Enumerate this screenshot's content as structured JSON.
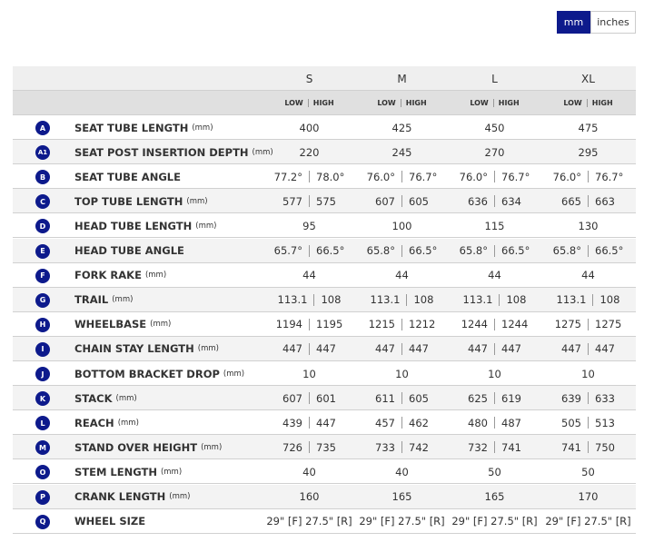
{
  "units": {
    "options": [
      "mm",
      "inches"
    ],
    "selected": 0
  },
  "sizes": [
    "S",
    "M",
    "L",
    "XL"
  ],
  "subheader": {
    "low": "LOW",
    "high": "HIGH"
  },
  "rows": [
    {
      "badge": "A",
      "label": "SEAT TUBE LENGTH",
      "unit": "(mm)",
      "cells": [
        "400",
        "425",
        "450",
        "475"
      ]
    },
    {
      "badge": "A1",
      "label": "SEAT POST INSERTION DEPTH",
      "unit": "(mm)",
      "cells": [
        "220",
        "245",
        "270",
        "295"
      ]
    },
    {
      "badge": "B",
      "label": "SEAT TUBE ANGLE",
      "cells": [
        [
          "77.2°",
          "78.0°"
        ],
        [
          "76.0°",
          "76.7°"
        ],
        [
          "76.0°",
          "76.7°"
        ],
        [
          "76.0°",
          "76.7°"
        ]
      ]
    },
    {
      "badge": "C",
      "label": "TOP TUBE LENGTH",
      "unit": "(mm)",
      "cells": [
        [
          "577",
          "575"
        ],
        [
          "607",
          "605"
        ],
        [
          "636",
          "634"
        ],
        [
          "665",
          "663"
        ]
      ]
    },
    {
      "badge": "D",
      "label": "HEAD TUBE LENGTH",
      "unit": "(mm)",
      "cells": [
        "95",
        "100",
        "115",
        "130"
      ]
    },
    {
      "badge": "E",
      "label": "HEAD TUBE ANGLE",
      "cells": [
        [
          "65.7°",
          "66.5°"
        ],
        [
          "65.8°",
          "66.5°"
        ],
        [
          "65.8°",
          "66.5°"
        ],
        [
          "65.8°",
          "66.5°"
        ]
      ]
    },
    {
      "badge": "F",
      "label": "FORK RAKE",
      "unit": "(mm)",
      "cells": [
        "44",
        "44",
        "44",
        "44"
      ]
    },
    {
      "badge": "G",
      "label": "TRAIL",
      "unit": "(mm)",
      "cells": [
        [
          "113.1",
          "108"
        ],
        [
          "113.1",
          "108"
        ],
        [
          "113.1",
          "108"
        ],
        [
          "113.1",
          "108"
        ]
      ]
    },
    {
      "badge": "H",
      "label": "WHEELBASE",
      "unit": "(mm)",
      "cells": [
        [
          "1194",
          "1195"
        ],
        [
          "1215",
          "1212"
        ],
        [
          "1244",
          "1244"
        ],
        [
          "1275",
          "1275"
        ]
      ]
    },
    {
      "badge": "I",
      "label": "CHAIN STAY LENGTH",
      "unit": "(mm)",
      "cells": [
        [
          "447",
          "447"
        ],
        [
          "447",
          "447"
        ],
        [
          "447",
          "447"
        ],
        [
          "447",
          "447"
        ]
      ]
    },
    {
      "badge": "J",
      "label": "BOTTOM BRACKET DROP",
      "unit": "(mm)",
      "cells": [
        "10",
        "10",
        "10",
        "10"
      ]
    },
    {
      "badge": "K",
      "label": "STACK",
      "unit": "(mm)",
      "cells": [
        [
          "607",
          "601"
        ],
        [
          "611",
          "605"
        ],
        [
          "625",
          "619"
        ],
        [
          "639",
          "633"
        ]
      ]
    },
    {
      "badge": "L",
      "label": "REACH",
      "unit": "(mm)",
      "cells": [
        [
          "439",
          "447"
        ],
        [
          "457",
          "462"
        ],
        [
          "480",
          "487"
        ],
        [
          "505",
          "513"
        ]
      ]
    },
    {
      "badge": "M",
      "label": "STAND OVER HEIGHT",
      "unit": "(mm)",
      "cells": [
        [
          "726",
          "735"
        ],
        [
          "733",
          "742"
        ],
        [
          "732",
          "741"
        ],
        [
          "741",
          "750"
        ]
      ]
    },
    {
      "badge": "O",
      "label": "STEM LENGTH",
      "unit": "(mm)",
      "cells": [
        "40",
        "40",
        "50",
        "50"
      ]
    },
    {
      "badge": "P",
      "label": "CRANK LENGTH",
      "unit": "(mm)",
      "cells": [
        "160",
        "165",
        "165",
        "170"
      ]
    },
    {
      "badge": "Q",
      "label": "WHEEL SIZE",
      "cells": [
        "29\" [F] 27.5\" [R]",
        "29\" [F] 27.5\" [R]",
        "29\" [F] 27.5\" [R]",
        "29\" [F] 27.5\" [R]"
      ]
    }
  ]
}
